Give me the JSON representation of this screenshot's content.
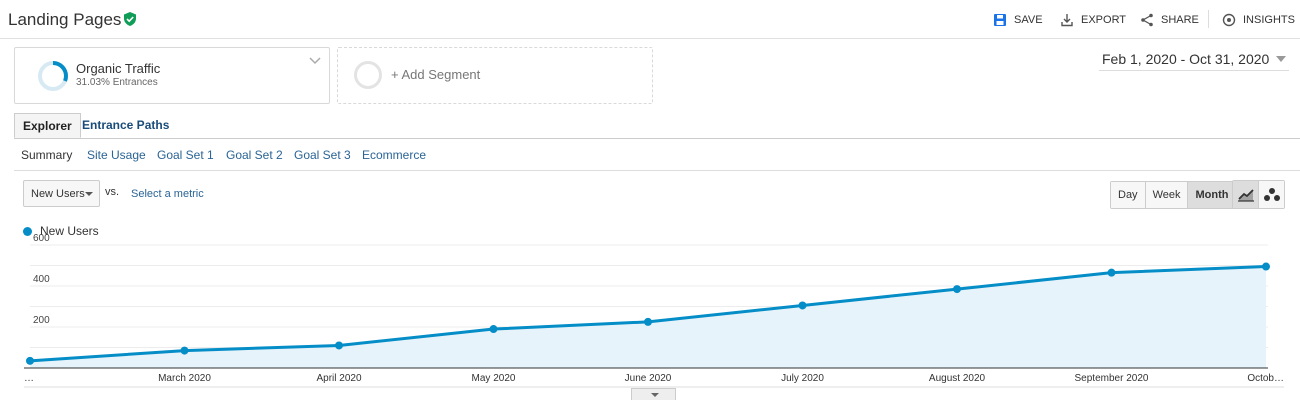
{
  "header": {
    "title": "Landing Pages",
    "actions": [
      {
        "label": "SAVE",
        "icon": "save-icon"
      },
      {
        "label": "EXPORT",
        "icon": "export-icon"
      },
      {
        "label": "SHARE",
        "icon": "share-icon"
      },
      {
        "label": "INSIGHTS",
        "icon": "insights-icon"
      }
    ]
  },
  "segments": {
    "primary": {
      "name": "Organic Traffic",
      "detail": "31.03% Entrances",
      "fraction": 0.3103
    },
    "add_label": "+ Add Segment"
  },
  "date_range": "Feb 1, 2020 - Oct 31, 2020",
  "tabs": [
    {
      "label": "Explorer",
      "active": true
    },
    {
      "label": "Entrance Paths",
      "active": false
    }
  ],
  "subtabs": [
    {
      "label": "Summary",
      "current": true
    },
    {
      "label": "Site Usage",
      "current": false
    },
    {
      "label": "Goal Set 1",
      "current": false
    },
    {
      "label": "Goal Set 2",
      "current": false
    },
    {
      "label": "Goal Set 3",
      "current": false
    },
    {
      "label": "Ecommerce",
      "current": false
    }
  ],
  "metric_selector": {
    "value": "New Users",
    "vs_label": "vs.",
    "secondary_prompt": "Select a metric"
  },
  "period_buttons": [
    {
      "label": "Day",
      "active": false
    },
    {
      "label": "Week",
      "active": false
    },
    {
      "label": "Month",
      "active": true
    }
  ],
  "view_buttons": [
    {
      "icon": "line-chart-icon",
      "active": true
    },
    {
      "icon": "motion-chart-icon",
      "active": false
    }
  ],
  "colors": {
    "series": "#058dc7",
    "area": "#e6f3fa",
    "verified": "#0f9d58"
  },
  "chart_data": {
    "type": "area",
    "legend": "New Users",
    "x": [
      "…",
      "March 2020",
      "April 2020",
      "May 2020",
      "June 2020",
      "July 2020",
      "August 2020",
      "September 2020",
      "Octob…"
    ],
    "series": [
      {
        "name": "New Users",
        "values": [
          35,
          85,
          110,
          190,
          225,
          305,
          385,
          465,
          495
        ]
      }
    ],
    "y_ticks": [
      "200",
      "400",
      "600"
    ],
    "ylim": [
      0,
      600
    ],
    "grid": true
  }
}
